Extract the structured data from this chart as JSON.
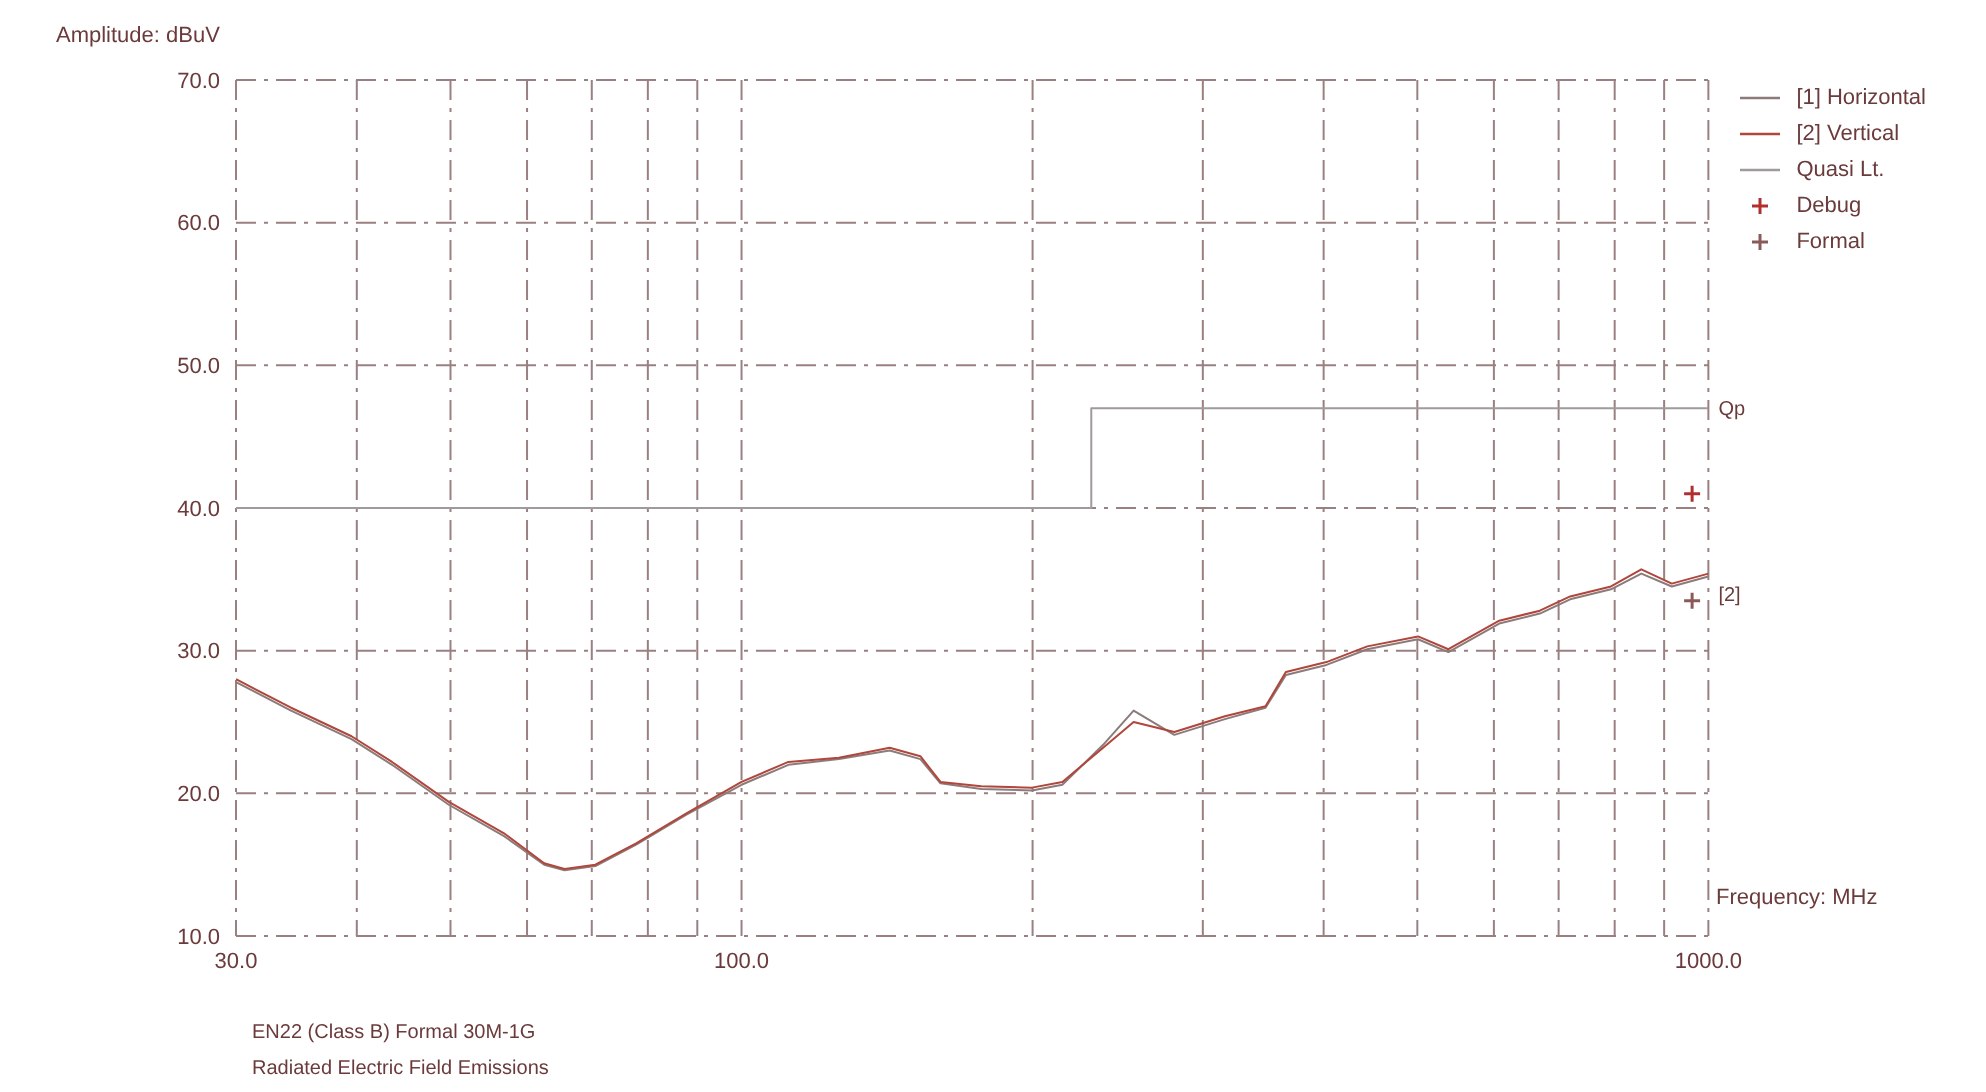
{
  "chart_data": {
    "type": "line",
    "xlabel": "Frequency: MHz",
    "ylabel": "Amplitude: dBuV",
    "annotations": [
      "EN22 (Class B) Formal 30M-1G",
      "Radiated Electric Field Emissions",
      {
        "text": "Qp",
        "x": 1000,
        "y": 47
      },
      {
        "text": "[2]",
        "x": 1000,
        "y": 34
      }
    ],
    "log": "x",
    "xlim": [
      30,
      1000
    ],
    "ylim": [
      10,
      70
    ],
    "xticks": [
      {
        "value": 30,
        "label": "30.0"
      },
      {
        "value": 40,
        "label": null
      },
      {
        "value": 50,
        "label": null
      },
      {
        "value": 60,
        "label": null
      },
      {
        "value": 70,
        "label": null
      },
      {
        "value": 80,
        "label": null
      },
      {
        "value": 90,
        "label": null
      },
      {
        "value": 100,
        "label": "100.0"
      },
      {
        "value": 200,
        "label": null
      },
      {
        "value": 300,
        "label": null
      },
      {
        "value": 400,
        "label": null
      },
      {
        "value": 500,
        "label": null
      },
      {
        "value": 600,
        "label": null
      },
      {
        "value": 700,
        "label": null
      },
      {
        "value": 800,
        "label": null
      },
      {
        "value": 900,
        "label": null
      },
      {
        "value": 1000,
        "label": "1000.0"
      }
    ],
    "yticks": [
      {
        "value": 10,
        "label": "10.0"
      },
      {
        "value": 20,
        "label": "20.0"
      },
      {
        "value": 30,
        "label": "30.0"
      },
      {
        "value": 40,
        "label": "40.0"
      },
      {
        "value": 50,
        "label": "50.0"
      },
      {
        "value": 60,
        "label": "60.0"
      },
      {
        "value": 70,
        "label": "70.0"
      }
    ],
    "grid": true,
    "legend": "top right",
    "series": [
      {
        "name": "[1] Horizontal",
        "type": "line",
        "color": "#8c7b7b",
        "marker": "none",
        "x": [
          30,
          34.2,
          39.5,
          43.5,
          49.8,
          56.8,
          62.5,
          65.6,
          70.6,
          77.8,
          87.7,
          100,
          111.8,
          126.1,
          142.3,
          153.1,
          160.6,
          177,
          199.7,
          214.7,
          236.6,
          254.4,
          280.3,
          316.2,
          348.3,
          365.6,
          402.7,
          443.8,
          500.8,
          538.4,
          607.7,
          669.4,
          719.5,
          793,
          852.4,
          916.6,
          1000
        ],
        "values": [
          27.8,
          25.8,
          23.8,
          22,
          19.2,
          17,
          15,
          14.6,
          14.9,
          16.4,
          18.5,
          20.6,
          22,
          22.4,
          23,
          22.4,
          20.7,
          20.3,
          20.2,
          20.6,
          23.4,
          25.8,
          24.1,
          25.2,
          26,
          28.3,
          29,
          30.1,
          30.8,
          29.9,
          31.9,
          32.6,
          33.6,
          34.3,
          35.4,
          34.5,
          35.2
        ]
      },
      {
        "name": "[2] Vertical",
        "type": "line",
        "color": "#b0463c",
        "marker": "none",
        "x": [
          30,
          34.2,
          39.5,
          43.5,
          49.8,
          56.8,
          62.5,
          65.6,
          70.6,
          77.8,
          87.7,
          100,
          111.8,
          126.1,
          142.3,
          153.1,
          160.6,
          177,
          199.7,
          214.7,
          236.6,
          254.4,
          280.3,
          316.2,
          348.3,
          365.6,
          402.7,
          443.8,
          500.8,
          538.4,
          607.7,
          669.4,
          719.5,
          793,
          852.4,
          916.6,
          1000
        ],
        "values": [
          28,
          26,
          24,
          22.2,
          19.4,
          17.2,
          15.1,
          14.7,
          15,
          16.5,
          18.6,
          20.8,
          22.2,
          22.5,
          23.2,
          22.6,
          20.8,
          20.5,
          20.4,
          20.8,
          23.2,
          25,
          24.3,
          25.4,
          26.1,
          28.5,
          29.2,
          30.3,
          31,
          30.1,
          32.1,
          32.8,
          33.8,
          34.5,
          35.7,
          34.7,
          35.4
        ]
      },
      {
        "name": "Quasi Lt.",
        "type": "step",
        "color": "#a09a9a",
        "marker": "none",
        "x": [
          30,
          230,
          1000
        ],
        "values": [
          40,
          47,
          47
        ]
      },
      {
        "name": "Debug",
        "type": "scatter",
        "color": "#b03030",
        "marker": "cross",
        "x": [
          962
        ],
        "values": [
          41
        ]
      },
      {
        "name": "Formal",
        "type": "scatter",
        "color": "#8a5a5a",
        "marker": "cross",
        "x": [
          962
        ],
        "values": [
          33.5
        ]
      }
    ]
  }
}
